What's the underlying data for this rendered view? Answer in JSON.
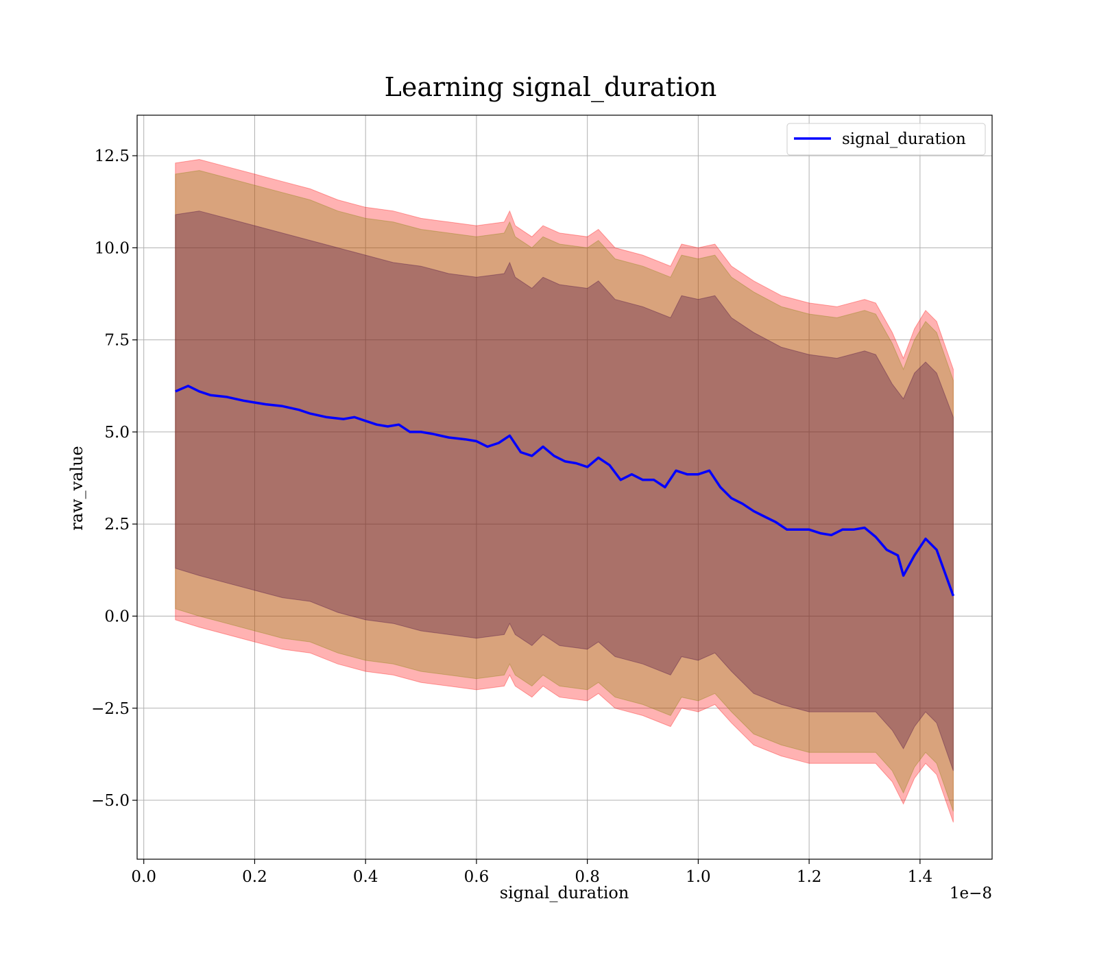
{
  "chart_data": {
    "type": "line",
    "title": "Learning signal_duration",
    "xlabel": "signal_duration",
    "ylabel": "raw_value",
    "x_offset_label": "1e−8",
    "xlim": [
      -0.012,
      1.53
    ],
    "ylim": [
      -6.6,
      13.6
    ],
    "x_ticks": [
      0.0,
      0.2,
      0.4,
      0.6,
      0.8,
      1.0,
      1.2,
      1.4
    ],
    "x_tick_labels": [
      "0.0",
      "0.2",
      "0.4",
      "0.6",
      "0.8",
      "1.0",
      "1.2",
      "1.4"
    ],
    "y_ticks": [
      -5.0,
      -2.5,
      0.0,
      2.5,
      5.0,
      7.5,
      10.0,
      12.5
    ],
    "y_tick_labels": [
      "−5.0",
      "−2.5",
      "0.0",
      "2.5",
      "5.0",
      "7.5",
      "10.0",
      "12.5"
    ],
    "grid": true,
    "legend_position": "top-right",
    "colors": {
      "line": "#0000ff",
      "band_outer": "#ff0000",
      "band_middle": "#808000",
      "band_inner": "#400040"
    },
    "series": [
      {
        "name": "signal_duration",
        "x": [
          0.057,
          0.08,
          0.1,
          0.12,
          0.15,
          0.18,
          0.2,
          0.22,
          0.25,
          0.28,
          0.3,
          0.33,
          0.36,
          0.38,
          0.4,
          0.42,
          0.44,
          0.46,
          0.48,
          0.5,
          0.52,
          0.55,
          0.58,
          0.6,
          0.62,
          0.64,
          0.66,
          0.68,
          0.7,
          0.72,
          0.74,
          0.76,
          0.78,
          0.8,
          0.82,
          0.84,
          0.86,
          0.88,
          0.9,
          0.92,
          0.94,
          0.96,
          0.98,
          1.0,
          1.02,
          1.04,
          1.06,
          1.08,
          1.1,
          1.12,
          1.14,
          1.16,
          1.18,
          1.2,
          1.22,
          1.24,
          1.26,
          1.28,
          1.3,
          1.32,
          1.34,
          1.36,
          1.37,
          1.39,
          1.41,
          1.43,
          1.46
        ],
        "y": [
          6.1,
          6.25,
          6.1,
          6.0,
          5.95,
          5.85,
          5.8,
          5.75,
          5.7,
          5.6,
          5.5,
          5.4,
          5.35,
          5.4,
          5.3,
          5.2,
          5.15,
          5.2,
          5.0,
          5.0,
          4.95,
          4.85,
          4.8,
          4.75,
          4.6,
          4.7,
          4.9,
          4.45,
          4.35,
          4.6,
          4.35,
          4.2,
          4.15,
          4.05,
          4.3,
          4.1,
          3.7,
          3.85,
          3.7,
          3.7,
          3.5,
          3.95,
          3.85,
          3.85,
          3.95,
          3.5,
          3.2,
          3.05,
          2.85,
          2.7,
          2.55,
          2.35,
          2.35,
          2.35,
          2.25,
          2.2,
          2.35,
          2.35,
          2.4,
          2.15,
          1.8,
          1.65,
          1.1,
          1.65,
          2.1,
          1.8,
          0.55
        ]
      }
    ],
    "bands": [
      {
        "x": [
          0.057,
          0.1,
          0.15,
          0.2,
          0.25,
          0.3,
          0.35,
          0.4,
          0.45,
          0.5,
          0.55,
          0.6,
          0.65,
          0.66,
          0.67,
          0.7,
          0.72,
          0.75,
          0.8,
          0.82,
          0.85,
          0.9,
          0.95,
          0.97,
          1.0,
          1.03,
          1.06,
          1.1,
          1.15,
          1.2,
          1.25,
          1.3,
          1.32,
          1.35,
          1.37,
          1.39,
          1.41,
          1.43,
          1.46
        ],
        "upper": [
          12.3,
          12.4,
          12.2,
          12.0,
          11.8,
          11.6,
          11.3,
          11.1,
          11.0,
          10.8,
          10.7,
          10.6,
          10.7,
          11.0,
          10.6,
          10.3,
          10.6,
          10.4,
          10.3,
          10.5,
          10.0,
          9.8,
          9.5,
          10.1,
          10.0,
          10.1,
          9.5,
          9.1,
          8.7,
          8.5,
          8.4,
          8.6,
          8.5,
          7.7,
          7.0,
          7.8,
          8.3,
          8.0,
          6.7
        ],
        "lower": [
          -0.1,
          -0.3,
          -0.5,
          -0.7,
          -0.9,
          -1.0,
          -1.3,
          -1.5,
          -1.6,
          -1.8,
          -1.9,
          -2.0,
          -1.9,
          -1.6,
          -1.9,
          -2.2,
          -1.9,
          -2.2,
          -2.3,
          -2.1,
          -2.5,
          -2.7,
          -3.0,
          -2.5,
          -2.6,
          -2.4,
          -2.9,
          -3.5,
          -3.8,
          -4.0,
          -4.0,
          -4.0,
          -4.0,
          -4.5,
          -5.1,
          -4.4,
          -4.0,
          -4.3,
          -5.6
        ]
      },
      {
        "x": [
          0.057,
          0.1,
          0.15,
          0.2,
          0.25,
          0.3,
          0.35,
          0.4,
          0.45,
          0.5,
          0.55,
          0.6,
          0.65,
          0.66,
          0.67,
          0.7,
          0.72,
          0.75,
          0.8,
          0.82,
          0.85,
          0.9,
          0.95,
          0.97,
          1.0,
          1.03,
          1.06,
          1.1,
          1.15,
          1.2,
          1.25,
          1.3,
          1.32,
          1.35,
          1.37,
          1.39,
          1.41,
          1.43,
          1.46
        ],
        "upper": [
          12.0,
          12.1,
          11.9,
          11.7,
          11.5,
          11.3,
          11.0,
          10.8,
          10.7,
          10.5,
          10.4,
          10.3,
          10.4,
          10.7,
          10.3,
          10.0,
          10.3,
          10.1,
          10.0,
          10.2,
          9.7,
          9.5,
          9.2,
          9.8,
          9.7,
          9.8,
          9.2,
          8.8,
          8.4,
          8.2,
          8.1,
          8.3,
          8.2,
          7.4,
          6.7,
          7.5,
          8.0,
          7.7,
          6.4
        ],
        "lower": [
          0.2,
          0.0,
          -0.2,
          -0.4,
          -0.6,
          -0.7,
          -1.0,
          -1.2,
          -1.3,
          -1.5,
          -1.6,
          -1.7,
          -1.6,
          -1.3,
          -1.6,
          -1.9,
          -1.6,
          -1.9,
          -2.0,
          -1.8,
          -2.2,
          -2.4,
          -2.7,
          -2.2,
          -2.3,
          -2.1,
          -2.6,
          -3.2,
          -3.5,
          -3.7,
          -3.7,
          -3.7,
          -3.7,
          -4.2,
          -4.8,
          -4.1,
          -3.7,
          -4.0,
          -5.3
        ]
      },
      {
        "x": [
          0.057,
          0.1,
          0.15,
          0.2,
          0.25,
          0.3,
          0.35,
          0.4,
          0.45,
          0.5,
          0.55,
          0.6,
          0.65,
          0.66,
          0.67,
          0.7,
          0.72,
          0.75,
          0.8,
          0.82,
          0.85,
          0.9,
          0.95,
          0.97,
          1.0,
          1.03,
          1.06,
          1.1,
          1.15,
          1.2,
          1.25,
          1.3,
          1.32,
          1.35,
          1.37,
          1.39,
          1.41,
          1.43,
          1.46
        ],
        "upper": [
          10.9,
          11.0,
          10.8,
          10.6,
          10.4,
          10.2,
          10.0,
          9.8,
          9.6,
          9.5,
          9.3,
          9.2,
          9.3,
          9.6,
          9.2,
          8.9,
          9.2,
          9.0,
          8.9,
          9.1,
          8.6,
          8.4,
          8.1,
          8.7,
          8.6,
          8.7,
          8.1,
          7.7,
          7.3,
          7.1,
          7.0,
          7.2,
          7.1,
          6.3,
          5.9,
          6.6,
          6.9,
          6.6,
          5.4
        ],
        "lower": [
          1.3,
          1.1,
          0.9,
          0.7,
          0.5,
          0.4,
          0.1,
          -0.1,
          -0.2,
          -0.4,
          -0.5,
          -0.6,
          -0.5,
          -0.2,
          -0.5,
          -0.8,
          -0.5,
          -0.8,
          -0.9,
          -0.7,
          -1.1,
          -1.3,
          -1.6,
          -1.1,
          -1.2,
          -1.0,
          -1.5,
          -2.1,
          -2.4,
          -2.6,
          -2.6,
          -2.6,
          -2.6,
          -3.1,
          -3.6,
          -3.0,
          -2.6,
          -2.9,
          -4.2
        ]
      }
    ]
  }
}
